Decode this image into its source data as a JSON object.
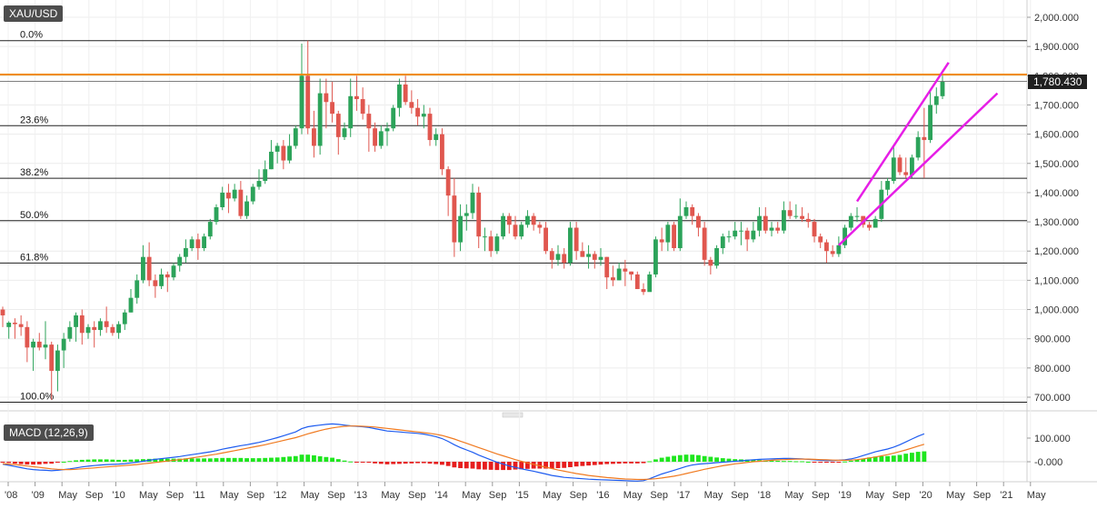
{
  "symbol": "XAU/USD",
  "macd_label": "MACD (12,26,9)",
  "last_price": "1,780.430",
  "colors": {
    "bull": "#2ca35a",
    "bear": "#e0574f",
    "resistance": "#f08c00",
    "channel": "#e61ee6",
    "macd_line": "#1e5cf0",
    "signal_line": "#f07a20",
    "hist_pos": "#1ee61e",
    "hist_neg": "#e61e1e"
  },
  "chart_data": {
    "type": "candlestick",
    "ylim": [
      670,
      2050
    ],
    "y_ticks": [
      "2,000.000",
      "1,900.000",
      "1,800.000",
      "1,700.000",
      "1,600.000",
      "1,500.000",
      "1,400.000",
      "1,300.000",
      "1,200.000",
      "1,100.000",
      "1,000.000",
      "900.000",
      "800.000",
      "700.000"
    ],
    "x_ticks": [
      "'08",
      "'09",
      "May",
      "Sep",
      "'10",
      "May",
      "Sep",
      "'11",
      "May",
      "Sep",
      "'12",
      "May",
      "Sep",
      "'13",
      "May",
      "Sep",
      "'14",
      "May",
      "Sep",
      "'15",
      "May",
      "Sep",
      "'16",
      "May",
      "Sep",
      "'17",
      "May",
      "Sep",
      "'18",
      "May",
      "Sep",
      "'19",
      "May",
      "Sep",
      "'20",
      "May",
      "Sep",
      "'21",
      "May"
    ],
    "fib_levels": [
      {
        "label": "0.0%",
        "value": 1920
      },
      {
        "label": "23.6%",
        "value": 1629
      },
      {
        "label": "38.2%",
        "value": 1449
      },
      {
        "label": "50.0%",
        "value": 1304
      },
      {
        "label": "61.8%",
        "value": 1159
      },
      {
        "label": "100.0%",
        "value": 683
      }
    ],
    "resistance": 1804,
    "last_value": 1780.43,
    "candles": [
      [
        1000,
        980,
        1010,
        940
      ],
      [
        940,
        955,
        960,
        900
      ],
      [
        955,
        950,
        970,
        900
      ],
      [
        950,
        940,
        980,
        910
      ],
      [
        940,
        870,
        960,
        820
      ],
      [
        870,
        890,
        900,
        790
      ],
      [
        890,
        870,
        920,
        860
      ],
      [
        870,
        880,
        960,
        830
      ],
      [
        880,
        790,
        890,
        690
      ],
      [
        790,
        860,
        880,
        720
      ],
      [
        860,
        900,
        920,
        800
      ],
      [
        900,
        940,
        960,
        890
      ],
      [
        940,
        980,
        990,
        890
      ],
      [
        980,
        920,
        1000,
        880
      ],
      [
        920,
        940,
        950,
        900
      ],
      [
        940,
        930,
        960,
        870
      ],
      [
        930,
        960,
        970,
        910
      ],
      [
        960,
        940,
        1010,
        920
      ],
      [
        940,
        920,
        950,
        910
      ],
      [
        920,
        950,
        960,
        900
      ],
      [
        950,
        990,
        1000,
        930
      ],
      [
        990,
        1040,
        1070,
        990
      ],
      [
        1040,
        1100,
        1120,
        1020
      ],
      [
        1100,
        1180,
        1220,
        1090
      ],
      [
        1180,
        1100,
        1230,
        1080
      ],
      [
        1100,
        1080,
        1120,
        1040
      ],
      [
        1080,
        1120,
        1140,
        1070
      ],
      [
        1120,
        1110,
        1130,
        1060
      ],
      [
        1110,
        1150,
        1160,
        1100
      ],
      [
        1150,
        1180,
        1190,
        1130
      ],
      [
        1180,
        1210,
        1240,
        1160
      ],
      [
        1210,
        1240,
        1250,
        1200
      ],
      [
        1240,
        1210,
        1260,
        1170
      ],
      [
        1210,
        1250,
        1260,
        1200
      ],
      [
        1250,
        1300,
        1310,
        1240
      ],
      [
        1300,
        1350,
        1360,
        1290
      ],
      [
        1350,
        1400,
        1420,
        1340
      ],
      [
        1400,
        1380,
        1430,
        1330
      ],
      [
        1380,
        1410,
        1430,
        1370
      ],
      [
        1410,
        1320,
        1440,
        1310
      ],
      [
        1320,
        1370,
        1390,
        1310
      ],
      [
        1370,
        1420,
        1430,
        1360
      ],
      [
        1420,
        1440,
        1480,
        1410
      ],
      [
        1440,
        1480,
        1510,
        1430
      ],
      [
        1480,
        1540,
        1580,
        1480
      ],
      [
        1540,
        1560,
        1570,
        1500
      ],
      [
        1560,
        1510,
        1580,
        1480
      ],
      [
        1510,
        1560,
        1600,
        1500
      ],
      [
        1560,
        1620,
        1630,
        1550
      ],
      [
        1620,
        1800,
        1910,
        1600
      ],
      [
        1800,
        1620,
        1920,
        1600
      ],
      [
        1620,
        1560,
        1680,
        1520
      ],
      [
        1560,
        1740,
        1790,
        1530
      ],
      [
        1740,
        1710,
        1790,
        1620
      ],
      [
        1710,
        1670,
        1780,
        1640
      ],
      [
        1670,
        1590,
        1680,
        1530
      ],
      [
        1590,
        1620,
        1640,
        1580
      ],
      [
        1620,
        1730,
        1790,
        1590
      ],
      [
        1730,
        1720,
        1800,
        1680
      ],
      [
        1720,
        1670,
        1760,
        1650
      ],
      [
        1670,
        1620,
        1700,
        1540
      ],
      [
        1620,
        1560,
        1640,
        1540
      ],
      [
        1560,
        1610,
        1630,
        1550
      ],
      [
        1610,
        1620,
        1640,
        1560
      ],
      [
        1620,
        1690,
        1700,
        1610
      ],
      [
        1690,
        1770,
        1790,
        1660
      ],
      [
        1770,
        1710,
        1800,
        1700
      ],
      [
        1710,
        1690,
        1750,
        1670
      ],
      [
        1690,
        1660,
        1720,
        1630
      ],
      [
        1660,
        1670,
        1700,
        1620
      ],
      [
        1670,
        1580,
        1690,
        1560
      ],
      [
        1580,
        1600,
        1620,
        1560
      ],
      [
        1600,
        1480,
        1620,
        1460
      ],
      [
        1480,
        1390,
        1490,
        1320
      ],
      [
        1390,
        1230,
        1450,
        1180
      ],
      [
        1230,
        1320,
        1360,
        1200
      ],
      [
        1320,
        1330,
        1360,
        1270
      ],
      [
        1330,
        1400,
        1430,
        1310
      ],
      [
        1400,
        1250,
        1420,
        1210
      ],
      [
        1250,
        1250,
        1280,
        1200
      ],
      [
        1250,
        1200,
        1270,
        1180
      ],
      [
        1200,
        1250,
        1260,
        1190
      ],
      [
        1250,
        1320,
        1330,
        1240
      ],
      [
        1320,
        1290,
        1330,
        1260
      ],
      [
        1290,
        1250,
        1320,
        1240
      ],
      [
        1250,
        1290,
        1300,
        1240
      ],
      [
        1290,
        1320,
        1340,
        1280
      ],
      [
        1320,
        1290,
        1330,
        1270
      ],
      [
        1290,
        1280,
        1300,
        1260
      ],
      [
        1280,
        1200,
        1300,
        1190
      ],
      [
        1200,
        1170,
        1210,
        1140
      ],
      [
        1170,
        1190,
        1220,
        1150
      ],
      [
        1190,
        1160,
        1210,
        1140
      ],
      [
        1160,
        1280,
        1300,
        1150
      ],
      [
        1280,
        1200,
        1300,
        1170
      ],
      [
        1200,
        1180,
        1230,
        1180
      ],
      [
        1180,
        1190,
        1220,
        1140
      ],
      [
        1190,
        1170,
        1200,
        1140
      ],
      [
        1170,
        1180,
        1210,
        1150
      ],
      [
        1180,
        1110,
        1180,
        1070
      ],
      [
        1110,
        1100,
        1150,
        1080
      ],
      [
        1100,
        1140,
        1160,
        1100
      ],
      [
        1140,
        1130,
        1170,
        1080
      ],
      [
        1130,
        1120,
        1130,
        1100
      ],
      [
        1120,
        1070,
        1130,
        1070
      ],
      [
        1070,
        1060,
        1090,
        1050
      ],
      [
        1060,
        1120,
        1130,
        1070
      ],
      [
        1120,
        1240,
        1250,
        1110
      ],
      [
        1240,
        1230,
        1280,
        1200
      ],
      [
        1230,
        1290,
        1300,
        1200
      ],
      [
        1290,
        1210,
        1300,
        1200
      ],
      [
        1210,
        1320,
        1380,
        1200
      ],
      [
        1320,
        1350,
        1370,
        1310
      ],
      [
        1350,
        1320,
        1360,
        1290
      ],
      [
        1320,
        1280,
        1330,
        1250
      ],
      [
        1280,
        1170,
        1300,
        1150
      ],
      [
        1170,
        1150,
        1180,
        1120
      ],
      [
        1150,
        1210,
        1220,
        1140
      ],
      [
        1210,
        1250,
        1260,
        1190
      ],
      [
        1250,
        1250,
        1270,
        1230
      ],
      [
        1250,
        1270,
        1300,
        1240
      ],
      [
        1270,
        1270,
        1300,
        1220
      ],
      [
        1270,
        1240,
        1280,
        1200
      ],
      [
        1240,
        1270,
        1300,
        1230
      ],
      [
        1270,
        1320,
        1350,
        1250
      ],
      [
        1320,
        1270,
        1350,
        1260
      ],
      [
        1270,
        1280,
        1300,
        1250
      ],
      [
        1280,
        1270,
        1300,
        1260
      ],
      [
        1270,
        1340,
        1370,
        1260
      ],
      [
        1340,
        1320,
        1370,
        1310
      ],
      [
        1320,
        1320,
        1360,
        1310
      ],
      [
        1320,
        1310,
        1350,
        1300
      ],
      [
        1310,
        1300,
        1330,
        1280
      ],
      [
        1300,
        1250,
        1310,
        1230
      ],
      [
        1250,
        1230,
        1260,
        1210
      ],
      [
        1230,
        1200,
        1240,
        1160
      ],
      [
        1200,
        1190,
        1220,
        1180
      ],
      [
        1190,
        1220,
        1250,
        1180
      ],
      [
        1220,
        1280,
        1290,
        1210
      ],
      [
        1280,
        1320,
        1330,
        1270
      ],
      [
        1320,
        1320,
        1350,
        1300
      ],
      [
        1320,
        1290,
        1320,
        1280
      ],
      [
        1290,
        1280,
        1300,
        1270
      ],
      [
        1280,
        1310,
        1320,
        1280
      ],
      [
        1310,
        1410,
        1440,
        1300
      ],
      [
        1410,
        1440,
        1450,
        1390
      ],
      [
        1440,
        1520,
        1560,
        1430
      ],
      [
        1520,
        1470,
        1530,
        1460
      ],
      [
        1470,
        1460,
        1520,
        1450
      ],
      [
        1460,
        1520,
        1530,
        1450
      ],
      [
        1520,
        1590,
        1610,
        1510
      ],
      [
        1590,
        1580,
        1690,
        1450
      ],
      [
        1580,
        1700,
        1750,
        1570
      ],
      [
        1700,
        1730,
        1760,
        1670
      ],
      [
        1730,
        1780,
        1800,
        1720
      ]
    ],
    "macd": {
      "type": "line",
      "ylim": [
        -90,
        150
      ],
      "y_ticks": [
        "100.000",
        "-0.000"
      ],
      "series": [
        {
          "name": "MACD",
          "values": [
            -10,
            -15,
            -20,
            -25,
            -30,
            -33,
            -35,
            -36,
            -38,
            -36,
            -33,
            -30,
            -26,
            -22,
            -19,
            -16,
            -14,
            -12,
            -11,
            -10,
            -8,
            -5,
            -2,
            2,
            6,
            10,
            13,
            16,
            19,
            22,
            26,
            30,
            34,
            38,
            42,
            47,
            53,
            58,
            63,
            68,
            72,
            77,
            82,
            88,
            95,
            102,
            110,
            118,
            126,
            140,
            148,
            152,
            155,
            158,
            160,
            158,
            155,
            152,
            150,
            148,
            145,
            140,
            135,
            130,
            128,
            126,
            124,
            122,
            120,
            117,
            112,
            106,
            98,
            86,
            72,
            60,
            50,
            40,
            28,
            18,
            8,
            -2,
            -10,
            -18,
            -24,
            -30,
            -35,
            -40,
            -46,
            -52,
            -58,
            -62,
            -66,
            -68,
            -70,
            -72,
            -74,
            -75,
            -76,
            -77,
            -78,
            -79,
            -80,
            -81,
            -82,
            -80,
            -72,
            -62,
            -52,
            -44,
            -36,
            -28,
            -20,
            -14,
            -10,
            -8,
            -6,
            -4,
            -2,
            0,
            2,
            4,
            6,
            8,
            10,
            11,
            12,
            13,
            14,
            14,
            13,
            12,
            10,
            8,
            6,
            5,
            5,
            6,
            8,
            12,
            18,
            26,
            34,
            42,
            48,
            54,
            62,
            72,
            84,
            96,
            108,
            118
          ]
        },
        {
          "name": "Signal",
          "values": [
            -8,
            -10,
            -12,
            -15,
            -18,
            -21,
            -24,
            -27,
            -30,
            -32,
            -33,
            -33,
            -32,
            -30,
            -28,
            -26,
            -24,
            -22,
            -20,
            -18,
            -16,
            -14,
            -12,
            -9,
            -6,
            -3,
            0,
            3,
            6,
            9,
            12,
            16,
            20,
            24,
            28,
            32,
            37,
            42,
            47,
            52,
            57,
            62,
            67,
            72,
            78,
            84,
            90,
            96,
            102,
            110,
            118,
            125,
            132,
            138,
            143,
            147,
            150,
            151,
            151,
            150,
            149,
            147,
            144,
            141,
            138,
            135,
            132,
            129,
            126,
            123,
            120,
            116,
            111,
            104,
            96,
            87,
            78,
            69,
            60,
            51,
            42,
            33,
            25,
            17,
            9,
            2,
            -5,
            -11,
            -17,
            -23,
            -29,
            -35,
            -40,
            -45,
            -50,
            -54,
            -58,
            -61,
            -64,
            -67,
            -69,
            -71,
            -73,
            -74,
            -75,
            -75,
            -74,
            -72,
            -69,
            -65,
            -61,
            -56,
            -50,
            -44,
            -38,
            -32,
            -27,
            -22,
            -17,
            -13,
            -9,
            -6,
            -3,
            0,
            2,
            4,
            6,
            8,
            9,
            10,
            11,
            11,
            11,
            10,
            9,
            8,
            7,
            6,
            6,
            7,
            9,
            12,
            16,
            20,
            25,
            30,
            36,
            43,
            50,
            58,
            66,
            74
          ]
        }
      ],
      "histogram": [
        -2,
        -5,
        -8,
        -10,
        -12,
        -12,
        -11,
        -9,
        -8,
        -4,
        0,
        3,
        6,
        8,
        9,
        10,
        10,
        10,
        9,
        8,
        8,
        9,
        10,
        11,
        12,
        13,
        13,
        13,
        13,
        13,
        14,
        14,
        14,
        14,
        14,
        15,
        16,
        16,
        16,
        16,
        15,
        15,
        15,
        16,
        17,
        18,
        20,
        22,
        24,
        30,
        30,
        27,
        23,
        20,
        17,
        11,
        5,
        1,
        -1,
        -2,
        -4,
        -7,
        -9,
        -11,
        -10,
        -9,
        -8,
        -7,
        -6,
        -6,
        -8,
        -10,
        -13,
        -18,
        -24,
        -27,
        -28,
        -29,
        -32,
        -33,
        -34,
        -35,
        -35,
        -35,
        -33,
        -32,
        -30,
        -29,
        -29,
        -29,
        -29,
        -27,
        -26,
        -23,
        -20,
        -18,
        -16,
        -14,
        -12,
        -10,
        -9,
        -8,
        -7,
        -7,
        -7,
        -6,
        2,
        10,
        17,
        21,
        25,
        28,
        30,
        30,
        28,
        24,
        21,
        18,
        15,
        13,
        11,
        10,
        9,
        8,
        7,
        6,
        5,
        4,
        3,
        3,
        2,
        2,
        0,
        -2,
        -3,
        -4,
        -4,
        -1,
        1,
        4,
        8,
        13,
        18,
        22,
        23,
        24,
        26,
        29,
        34,
        38,
        42,
        44
      ]
    }
  }
}
